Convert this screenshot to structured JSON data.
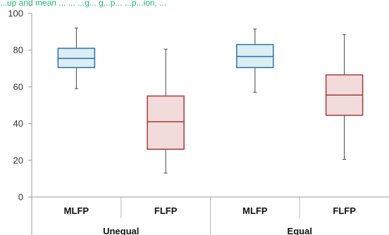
{
  "chart_data": {
    "type": "boxplot",
    "title_fragment": "...up and mean ... ... ...g... g...p... ...p...ion, ...",
    "ylim": [
      0,
      100
    ],
    "yticks": [
      "0",
      "20",
      "40",
      "60",
      "80",
      "100"
    ],
    "groups": [
      "Unequal",
      "Equal"
    ],
    "categories": [
      "MLFP",
      "FLFP",
      "MLFP",
      "FLFP"
    ],
    "boxes": [
      {
        "group": "Unequal",
        "label": "MLFP",
        "whisker_low": 59,
        "q1": 70.5,
        "median": 75.5,
        "q3": 81,
        "whisker_high": 92,
        "fill": "#daeef3",
        "stroke": "#2e6fa7"
      },
      {
        "group": "Unequal",
        "label": "FLFP",
        "whisker_low": 13,
        "q1": 26,
        "median": 41,
        "q3": 55,
        "whisker_high": 80.5,
        "fill": "#f2dcdb",
        "stroke": "#a9373b"
      },
      {
        "group": "Equal",
        "label": "MLFP",
        "whisker_low": 57,
        "q1": 70.5,
        "median": 76.5,
        "q3": 83,
        "whisker_high": 91.5,
        "fill": "#daeef3",
        "stroke": "#2e6fa7"
      },
      {
        "group": "Equal",
        "label": "FLFP",
        "whisker_low": 20.5,
        "q1": 44.5,
        "median": 55.5,
        "q3": 66.5,
        "whisker_high": 88.5,
        "fill": "#f2dcdb",
        "stroke": "#a9373b"
      }
    ],
    "grid": false,
    "legend": "none"
  }
}
